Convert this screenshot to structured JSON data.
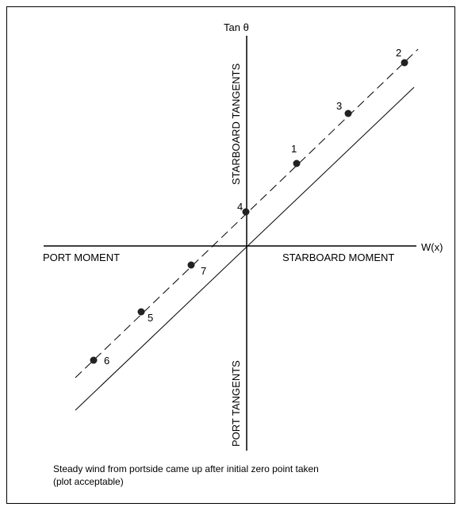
{
  "diagram": {
    "y_axis_label": "Tan θ",
    "x_axis_label": "W(x)",
    "quadrant_labels": {
      "left": "PORT MOMENT",
      "right": "STARBOARD MOMENT",
      "top": "STARBOARD TANGENTS",
      "bottom": "PORT TANGENTS"
    },
    "points": [
      {
        "label": "1"
      },
      {
        "label": "2"
      },
      {
        "label": "3"
      },
      {
        "label": "4"
      },
      {
        "label": "5"
      },
      {
        "label": "6"
      },
      {
        "label": "7"
      }
    ],
    "lines": {
      "dashed": "fitted line through plotted points",
      "solid": "reference line through origin"
    },
    "caption_line1": "Steady wind from portside came up after initial zero point taken",
    "caption_line2": "(plot acceptable)"
  }
}
